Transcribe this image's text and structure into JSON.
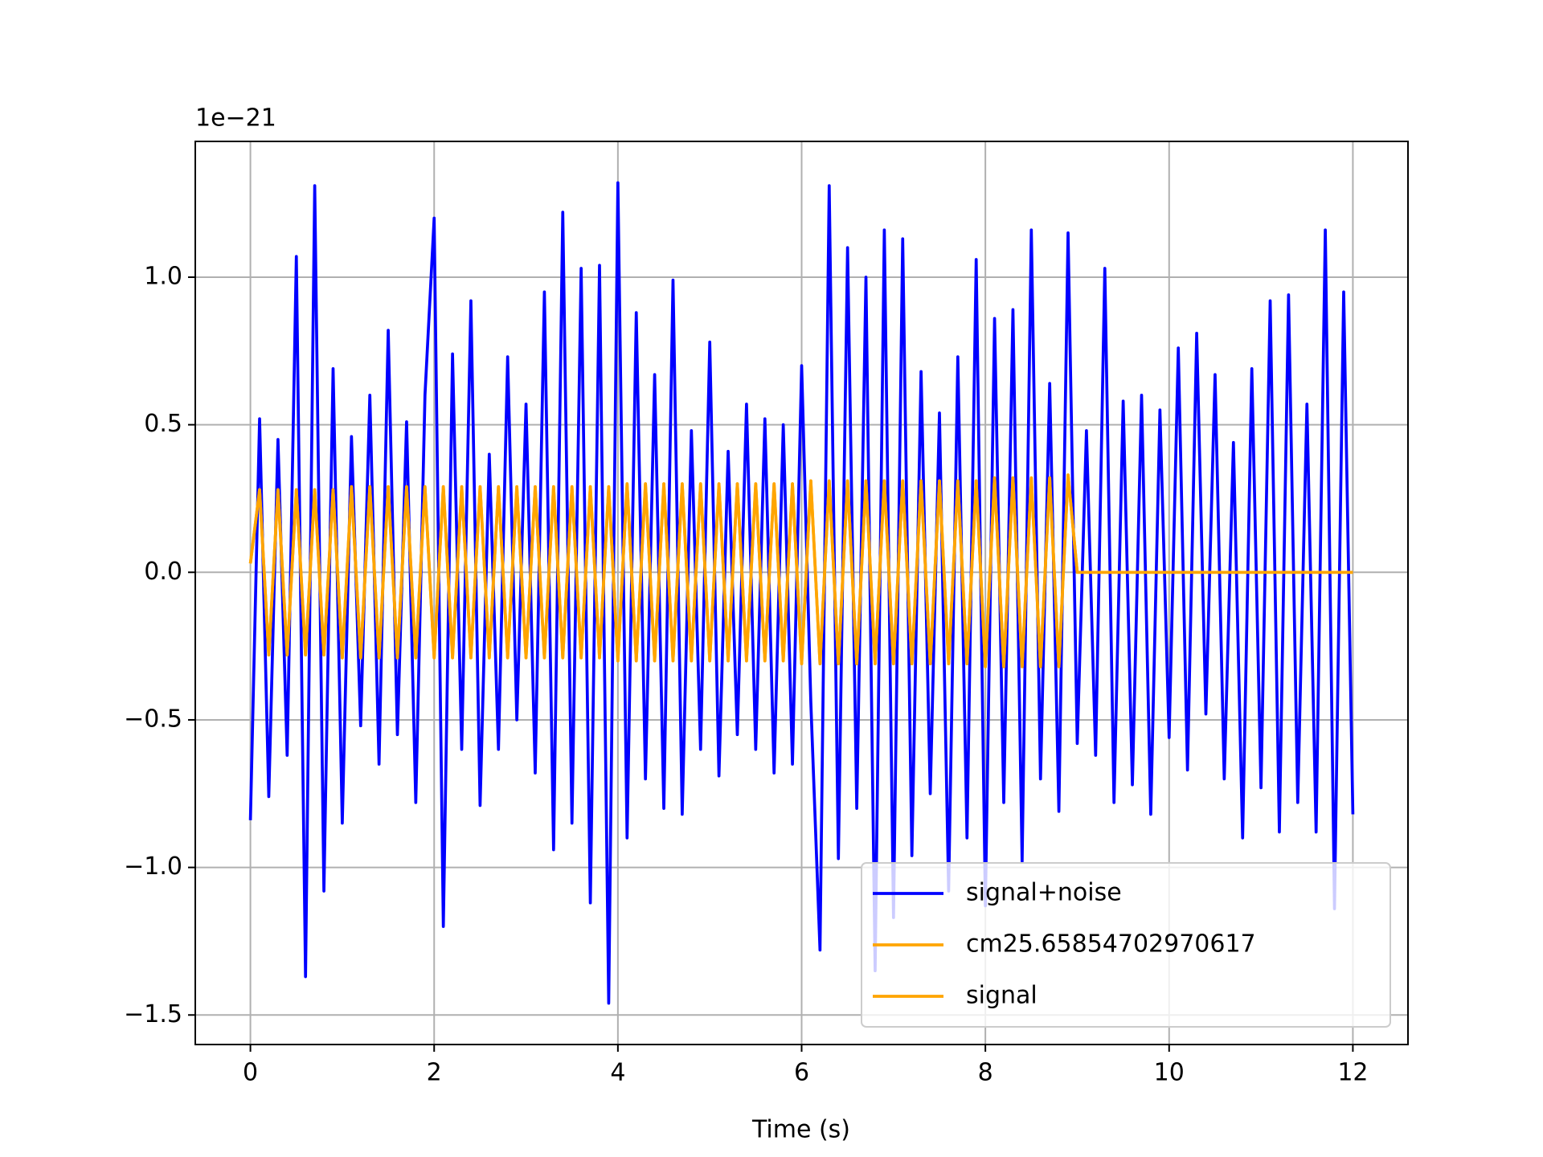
{
  "chart_data": {
    "type": "line",
    "offset_text": "1e−21",
    "xlabel": "Time (s)",
    "grid": true,
    "legend_loc": "lower right",
    "xlim": [
      -0.6,
      12.6
    ],
    "ylim": [
      -1.6,
      1.46
    ],
    "xticks": [
      0,
      2,
      4,
      6,
      8,
      10,
      12
    ],
    "yticks": [
      {
        "value": -1.5,
        "label": "−1.5"
      },
      {
        "value": -1.0,
        "label": "−1.0"
      },
      {
        "value": -0.5,
        "label": "−0.5"
      },
      {
        "value": 0.0,
        "label": "0.0"
      },
      0.5,
      {
        "value": 1.0,
        "label": "1.0"
      }
    ],
    "x": [
      0.0,
      0.1,
      0.2,
      0.3,
      0.4,
      0.5,
      0.6,
      0.7,
      0.8,
      0.9,
      1.0,
      1.1,
      1.2,
      1.3,
      1.4,
      1.5,
      1.6,
      1.7,
      1.8,
      1.9,
      2.0,
      2.1,
      2.2,
      2.3,
      2.4,
      2.5,
      2.6,
      2.7,
      2.8,
      2.9,
      3.0,
      3.1,
      3.2,
      3.3,
      3.4,
      3.5,
      3.6,
      3.7,
      3.8,
      3.9,
      4.0,
      4.1,
      4.2,
      4.3,
      4.4,
      4.5,
      4.6,
      4.7,
      4.8,
      4.9,
      5.0,
      5.1,
      5.2,
      5.3,
      5.4,
      5.5,
      5.6,
      5.7,
      5.8,
      5.9,
      6.0,
      6.1,
      6.2,
      6.3,
      6.4,
      6.5,
      6.6,
      6.7,
      6.8,
      6.9,
      7.0,
      7.1,
      7.2,
      7.3,
      7.4,
      7.5,
      7.6,
      7.7,
      7.8,
      7.9,
      8.0,
      8.1,
      8.2,
      8.3,
      8.4,
      8.5,
      8.6,
      8.7,
      8.8,
      8.9,
      9.0,
      9.1,
      9.2,
      9.3,
      9.4,
      9.5,
      9.6,
      9.7,
      9.8,
      9.9,
      10.0,
      10.1,
      10.2,
      10.3,
      10.4,
      10.5,
      10.6,
      10.7,
      10.8,
      10.9,
      11.0,
      11.1,
      11.2,
      11.3,
      11.4,
      11.5,
      11.6,
      11.7,
      11.8,
      11.9,
      12.0
    ],
    "series": [
      {
        "name": "signal+noise",
        "color": "#0000ff",
        "values": [
          -0.84,
          0.52,
          -0.76,
          0.45,
          -0.62,
          1.07,
          -1.37,
          1.31,
          -1.08,
          0.69,
          -0.85,
          0.46,
          -0.52,
          0.6,
          -0.65,
          0.82,
          -0.55,
          0.51,
          -0.78,
          0.6,
          1.2,
          -1.2,
          0.74,
          -0.6,
          0.92,
          -0.79,
          0.4,
          -0.6,
          0.73,
          -0.5,
          0.57,
          -0.68,
          0.95,
          -0.94,
          1.22,
          -0.85,
          1.03,
          -1.12,
          1.04,
          -1.46,
          1.32,
          -0.9,
          0.88,
          -0.7,
          0.67,
          -0.8,
          0.99,
          -0.82,
          0.48,
          -0.6,
          0.78,
          -0.69,
          0.41,
          -0.55,
          0.57,
          -0.6,
          0.52,
          -0.68,
          0.5,
          -0.65,
          0.7,
          -0.44,
          -1.28,
          1.31,
          -0.97,
          1.1,
          -0.8,
          1.0,
          -1.35,
          1.16,
          -1.17,
          1.13,
          -0.96,
          0.68,
          -0.75,
          0.54,
          -1.08,
          0.73,
          -0.9,
          1.06,
          -1.13,
          0.86,
          -0.78,
          0.89,
          -0.98,
          1.16,
          -0.7,
          0.64,
          -0.81,
          1.15,
          -0.58,
          0.48,
          -0.62,
          1.03,
          -0.78,
          0.58,
          -0.72,
          0.6,
          -0.82,
          0.55,
          -0.56,
          0.76,
          -0.67,
          0.81,
          -0.48,
          0.67,
          -0.7,
          0.44,
          -0.9,
          0.69,
          -0.73,
          0.92,
          -0.88,
          0.94,
          -0.78,
          0.57,
          -0.88,
          1.16,
          -1.14,
          0.95,
          -0.82
        ]
      },
      {
        "name": "cm25.65854702970617",
        "color": "#ffa500",
        "values": [
          0.03,
          0.28,
          -0.28,
          0.28,
          -0.28,
          0.28,
          -0.28,
          0.28,
          -0.28,
          0.28,
          -0.29,
          0.29,
          -0.29,
          0.29,
          -0.29,
          0.29,
          -0.29,
          0.29,
          -0.29,
          0.29,
          -0.29,
          0.29,
          -0.29,
          0.29,
          -0.29,
          0.29,
          -0.29,
          0.29,
          -0.29,
          0.29,
          -0.29,
          0.29,
          -0.29,
          0.29,
          -0.29,
          0.29,
          -0.29,
          0.29,
          -0.29,
          0.29,
          -0.3,
          0.3,
          -0.3,
          0.3,
          -0.3,
          0.3,
          -0.3,
          0.3,
          -0.3,
          0.3,
          -0.3,
          0.3,
          -0.3,
          0.3,
          -0.3,
          0.3,
          -0.3,
          0.3,
          -0.3,
          0.3,
          -0.31,
          0.31,
          -0.31,
          0.31,
          -0.31,
          0.31,
          -0.31,
          0.31,
          -0.31,
          0.31,
          -0.31,
          0.31,
          -0.31,
          0.31,
          -0.31,
          0.31,
          -0.31,
          0.31,
          -0.31,
          0.31,
          -0.32,
          0.32,
          -0.32,
          0.32,
          -0.32,
          0.32,
          -0.32,
          0.32,
          -0.32,
          0.33,
          0,
          0,
          0,
          0,
          0,
          0,
          0,
          0,
          0,
          0,
          0,
          0,
          0,
          0,
          0,
          0,
          0,
          0,
          0,
          0,
          0,
          0,
          0,
          0,
          0,
          0,
          0,
          0,
          0,
          0,
          0
        ]
      },
      {
        "name": "signal",
        "color": "#ffa500",
        "values": [
          0.03,
          0.28,
          -0.28,
          0.28,
          -0.28,
          0.28,
          -0.28,
          0.28,
          -0.28,
          0.28,
          -0.29,
          0.29,
          -0.29,
          0.29,
          -0.29,
          0.29,
          -0.29,
          0.29,
          -0.29,
          0.29,
          -0.29,
          0.29,
          -0.29,
          0.29,
          -0.29,
          0.29,
          -0.29,
          0.29,
          -0.29,
          0.29,
          -0.29,
          0.29,
          -0.29,
          0.29,
          -0.29,
          0.29,
          -0.29,
          0.29,
          -0.29,
          0.29,
          -0.3,
          0.3,
          -0.3,
          0.3,
          -0.3,
          0.3,
          -0.3,
          0.3,
          -0.3,
          0.3,
          -0.3,
          0.3,
          -0.3,
          0.3,
          -0.3,
          0.3,
          -0.3,
          0.3,
          -0.3,
          0.3,
          -0.31,
          0.31,
          -0.31,
          0.31,
          -0.31,
          0.31,
          -0.31,
          0.31,
          -0.31,
          0.31,
          -0.31,
          0.31,
          -0.31,
          0.31,
          -0.31,
          0.31,
          -0.31,
          0.31,
          -0.31,
          0.31,
          -0.32,
          0.32,
          -0.32,
          0.32,
          -0.32,
          0.32,
          -0.32,
          0.32,
          -0.32,
          0.33,
          0,
          0,
          0,
          0,
          0,
          0,
          0,
          0,
          0,
          0,
          0,
          0,
          0,
          0,
          0,
          0,
          0,
          0,
          0,
          0,
          0,
          0,
          0,
          0,
          0,
          0,
          0,
          0,
          0,
          0,
          0
        ]
      }
    ]
  }
}
